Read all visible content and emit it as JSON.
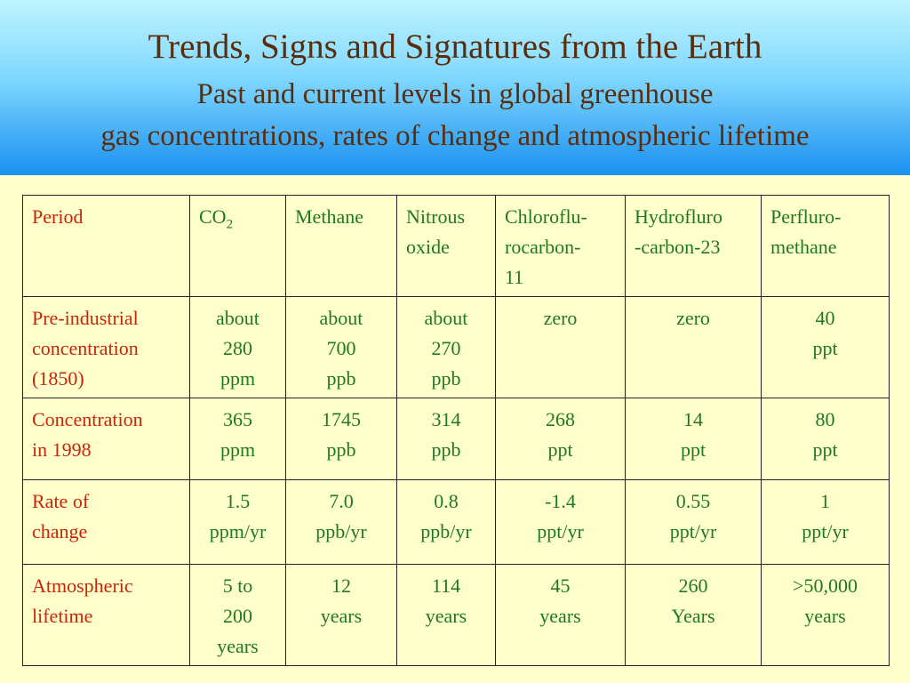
{
  "header": {
    "title": "Trends, Signs and Signatures from the Earth",
    "subtitle_line1": "Past and current levels in global greenhouse",
    "subtitle_line2": "gas concentrations, rates of change and atmospheric lifetime"
  },
  "table": {
    "headers": {
      "period": "Period",
      "co2_main": "CO",
      "co2_sub": "2",
      "methane": "Methane",
      "nitrous": "Nitrous\noxide",
      "cfc": "Chloroflu-\nrocarbon-\n11",
      "hfc": "Hydrofluro\n-carbon-23",
      "pfm": "Perfluro-\nmethane"
    },
    "rows": [
      {
        "label": "Pre-industrial\nconcentration\n(1850)",
        "co2": "about\n280\nppm",
        "methane": "about\n700\nppb",
        "nitrous": "about\n270\nppb",
        "cfc": "zero",
        "hfc": "zero",
        "pfm": "40\nppt"
      },
      {
        "label": "Concentration\nin 1998",
        "co2": "365\nppm",
        "methane": "1745\nppb",
        "nitrous": "314\nppb",
        "cfc": "268\nppt",
        "hfc": "14\nppt",
        "pfm": "80\nppt"
      },
      {
        "label": "Rate of\nchange",
        "co2": "1.5\nppm/yr",
        "methane": "7.0\nppb/yr",
        "nitrous": "0.8\nppb/yr",
        "cfc": "-1.4\nppt/yr",
        "hfc": "0.55\nppt/yr",
        "pfm": "1\nppt/yr"
      },
      {
        "label": "Atmospheric\nlifetime",
        "co2": "5 to\n200\nyears",
        "methane": "12\nyears",
        "nitrous": "114\nyears",
        "cfc": "45\nyears",
        "hfc": "260\nYears",
        "pfm": ">50,000\nyears"
      }
    ]
  },
  "colors": {
    "title": "#5a2e0c",
    "label_red": "#c8250a",
    "value_green": "#1e7a1e",
    "background": "#ffffcc"
  }
}
